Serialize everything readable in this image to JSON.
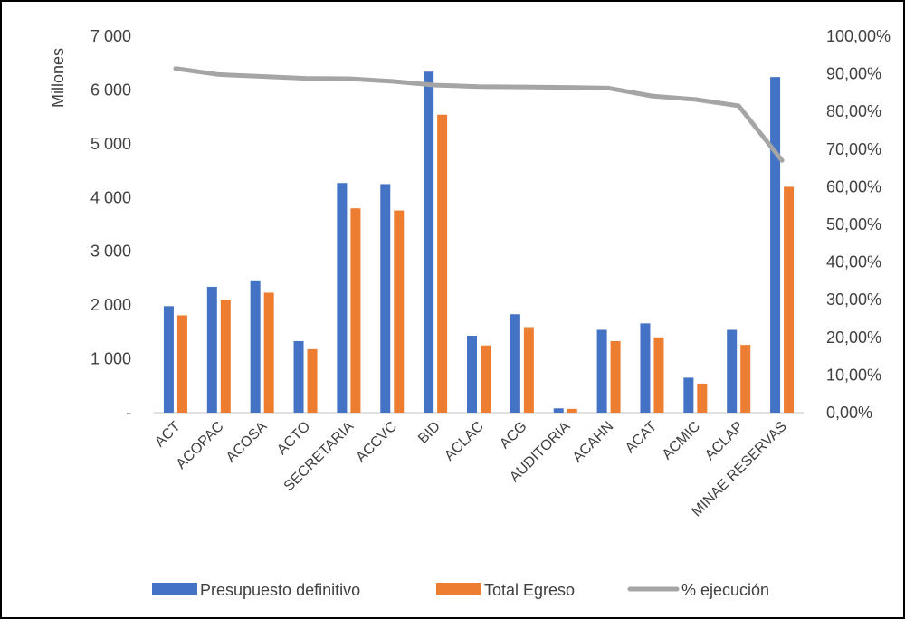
{
  "chart_data": {
    "type": "bar",
    "categories": [
      "ACT",
      "ACOPAC",
      "ACOSA",
      "ACTO",
      "SECRETARIA",
      "ACCVC",
      "BID",
      "ACLAC",
      "ACG",
      "AUDITORIA",
      "ACAHN",
      "ACAT",
      "ACMIC",
      "ACLAP",
      "MINAE RESERVAS"
    ],
    "series": [
      {
        "name": "Presupuesto definitivo",
        "kind": "bar",
        "axis": "left",
        "color": "#4472C4",
        "values": [
          1980,
          2340,
          2460,
          1330,
          4270,
          4250,
          6340,
          1430,
          1830,
          80,
          1540,
          1660,
          650,
          1540,
          6240
        ]
      },
      {
        "name": "Total Egreso",
        "kind": "bar",
        "axis": "left",
        "color": "#ED7D31",
        "values": [
          1810,
          2100,
          2230,
          1180,
          3800,
          3760,
          5540,
          1250,
          1590,
          70,
          1330,
          1400,
          540,
          1260,
          4200
        ]
      },
      {
        "name": "% ejecución",
        "kind": "line",
        "axis": "right",
        "color": "#A5A5A5",
        "values": [
          91.4,
          89.8,
          89.3,
          88.8,
          88.7,
          88.0,
          87.0,
          86.6,
          86.5,
          86.4,
          86.2,
          84.1,
          83.2,
          81.5,
          67.0
        ]
      }
    ],
    "y_left": {
      "label": "Millones",
      "min": 0,
      "max": 7000,
      "ticks": [
        {
          "value": 0,
          "label": "-"
        },
        {
          "value": 1000,
          "label": "1 000"
        },
        {
          "value": 2000,
          "label": "2 000"
        },
        {
          "value": 3000,
          "label": "3 000"
        },
        {
          "value": 4000,
          "label": "4 000"
        },
        {
          "value": 5000,
          "label": "5 000"
        },
        {
          "value": 6000,
          "label": "6 000"
        },
        {
          "value": 7000,
          "label": "7 000"
        }
      ]
    },
    "y_right": {
      "min": 0,
      "max": 100,
      "ticks": [
        {
          "value": 0,
          "label": "0,00%"
        },
        {
          "value": 10,
          "label": "10,00%"
        },
        {
          "value": 20,
          "label": "20,00%"
        },
        {
          "value": 30,
          "label": "30,00%"
        },
        {
          "value": 40,
          "label": "40,00%"
        },
        {
          "value": 50,
          "label": "50,00%"
        },
        {
          "value": 60,
          "label": "60,00%"
        },
        {
          "value": 70,
          "label": "70,00%"
        },
        {
          "value": 80,
          "label": "80,00%"
        },
        {
          "value": 90,
          "label": "90,00%"
        },
        {
          "value": 100,
          "label": "100,00%"
        }
      ]
    },
    "grid": false,
    "legend_position": "bottom"
  }
}
